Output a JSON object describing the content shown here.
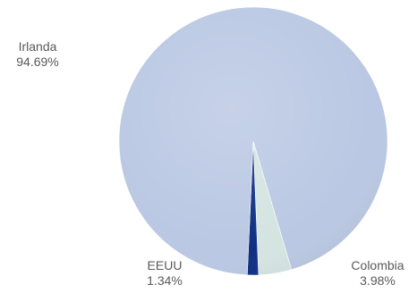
{
  "chart_data": {
    "type": "pie",
    "title": "",
    "slices": [
      {
        "label": "Irlanda",
        "value": 94.69,
        "display": "94.69%",
        "color": "#bac8e3"
      },
      {
        "label": "Colombia",
        "value": 3.98,
        "display": "3.98%",
        "color": "#d4e4e1"
      },
      {
        "label": "EEUU",
        "value": 1.34,
        "display": "1.34%",
        "color": "#102f82"
      }
    ],
    "legend": "none",
    "data_labels": "outside"
  }
}
